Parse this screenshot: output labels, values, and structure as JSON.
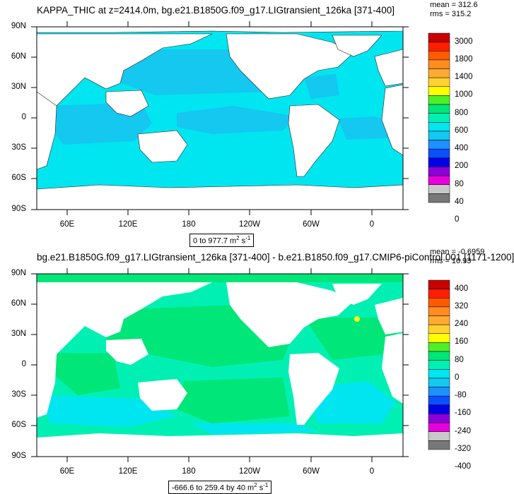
{
  "colors": {
    "ocean_light": "#00e6f0",
    "ocean_mid": "#14c8f0",
    "ocean_blue": "#1e90ff",
    "green": "#00ee78",
    "bright_green": "#3cf01e",
    "land": "#ffffff"
  },
  "axis": {
    "lat_labels": [
      "90N",
      "60N",
      "30N",
      "0",
      "30S",
      "60S",
      "90S"
    ],
    "lon_labels": [
      "60E",
      "120E",
      "180",
      "120W",
      "60W",
      "0"
    ]
  },
  "panel1": {
    "title": "KAPPA_THIC at z=2414.0m, bg.e21.B1850G.f09_g17.LIGtransient_126ka [371-400]",
    "mean": "mean = 312.6",
    "rms": "rms = 315.2",
    "range": "0 to 977.7 m",
    "range_units": "2",
    "range_suffix": " s",
    "range_exp": "-1",
    "colorbar_labels": [
      "3000",
      "1800",
      "1400",
      "1000",
      "800",
      "600",
      "400",
      "200",
      "80",
      "40",
      "0"
    ],
    "colorbar_colors": [
      "#c80000",
      "#ff1e00",
      "#ff5a00",
      "#ff8c1e",
      "#ffaa32",
      "#ffd232",
      "#ffff00",
      "#50f028",
      "#00e678",
      "#00f0b4",
      "#00e6f0",
      "#14c8f0",
      "#1e90ff",
      "#0a50ff",
      "#0000e6",
      "#8c00dc",
      "#e600dc",
      "#c8c8c8",
      "#787878"
    ]
  },
  "panel2": {
    "title": "bg.e21.B1850G.f09_g17.LIGtransient_126ka [371-400] - b.e21.B1850.f09_g17.CMIP6-piControl.001 [1171-1200]",
    "mean": "mean = -0.6959",
    "rms": "rms = 10.93",
    "range": "-666.6 to 259.4 by 40 m",
    "range_units": "2",
    "range_suffix": " s",
    "range_exp": "-1",
    "colorbar_labels": [
      "400",
      "320",
      "240",
      "160",
      "80",
      "0",
      "-80",
      "-160",
      "-240",
      "-320",
      "-400"
    ],
    "colorbar_colors": [
      "#c80000",
      "#ff1e00",
      "#ff5a00",
      "#ff8c1e",
      "#ffaa32",
      "#ffd232",
      "#ffff00",
      "#50f028",
      "#00e678",
      "#00f0b4",
      "#00e6f0",
      "#14c8f0",
      "#1e90ff",
      "#0a50ff",
      "#0000e6",
      "#8c00dc",
      "#e600dc",
      "#c8c8c8",
      "#787878"
    ]
  }
}
